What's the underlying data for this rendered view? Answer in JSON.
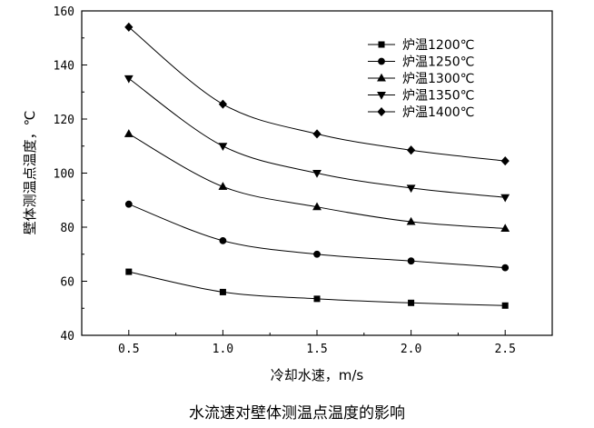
{
  "chart_data": {
    "type": "line",
    "title": "",
    "xlabel": "冷却水速，m/s",
    "ylabel": "壁体测温点温度，℃",
    "xlim": [
      0.25,
      2.75
    ],
    "ylim": [
      40,
      160
    ],
    "x_ticks": [
      "0.5",
      "1.0",
      "1.5",
      "2.0",
      "2.5"
    ],
    "x_tick_values": [
      0.5,
      1.0,
      1.5,
      2.0,
      2.5
    ],
    "y_ticks": [
      "40",
      "60",
      "80",
      "100",
      "120",
      "140",
      "160"
    ],
    "y_tick_values": [
      40,
      60,
      80,
      100,
      120,
      140,
      160
    ],
    "legend_position": "top-right",
    "x": [
      0.5,
      1.0,
      1.5,
      2.0,
      2.5
    ],
    "series": [
      {
        "name": "炉温1200℃",
        "marker": "square",
        "values": [
          63.5,
          56,
          53.5,
          52,
          51
        ]
      },
      {
        "name": "炉温1250℃",
        "marker": "circle",
        "values": [
          88.5,
          75,
          70,
          67.5,
          65
        ]
      },
      {
        "name": "炉温1300℃",
        "marker": "triangle-up",
        "values": [
          114.5,
          95,
          87.5,
          82,
          79.5
        ]
      },
      {
        "name": "炉温1350℃",
        "marker": "triangle-down",
        "values": [
          135,
          110,
          100,
          94.5,
          91
        ]
      },
      {
        "name": "炉温1400℃",
        "marker": "diamond",
        "values": [
          154,
          125.5,
          114.5,
          108.5,
          104.5
        ]
      }
    ]
  },
  "caption": "水流速对壁体测温点温度的影响"
}
